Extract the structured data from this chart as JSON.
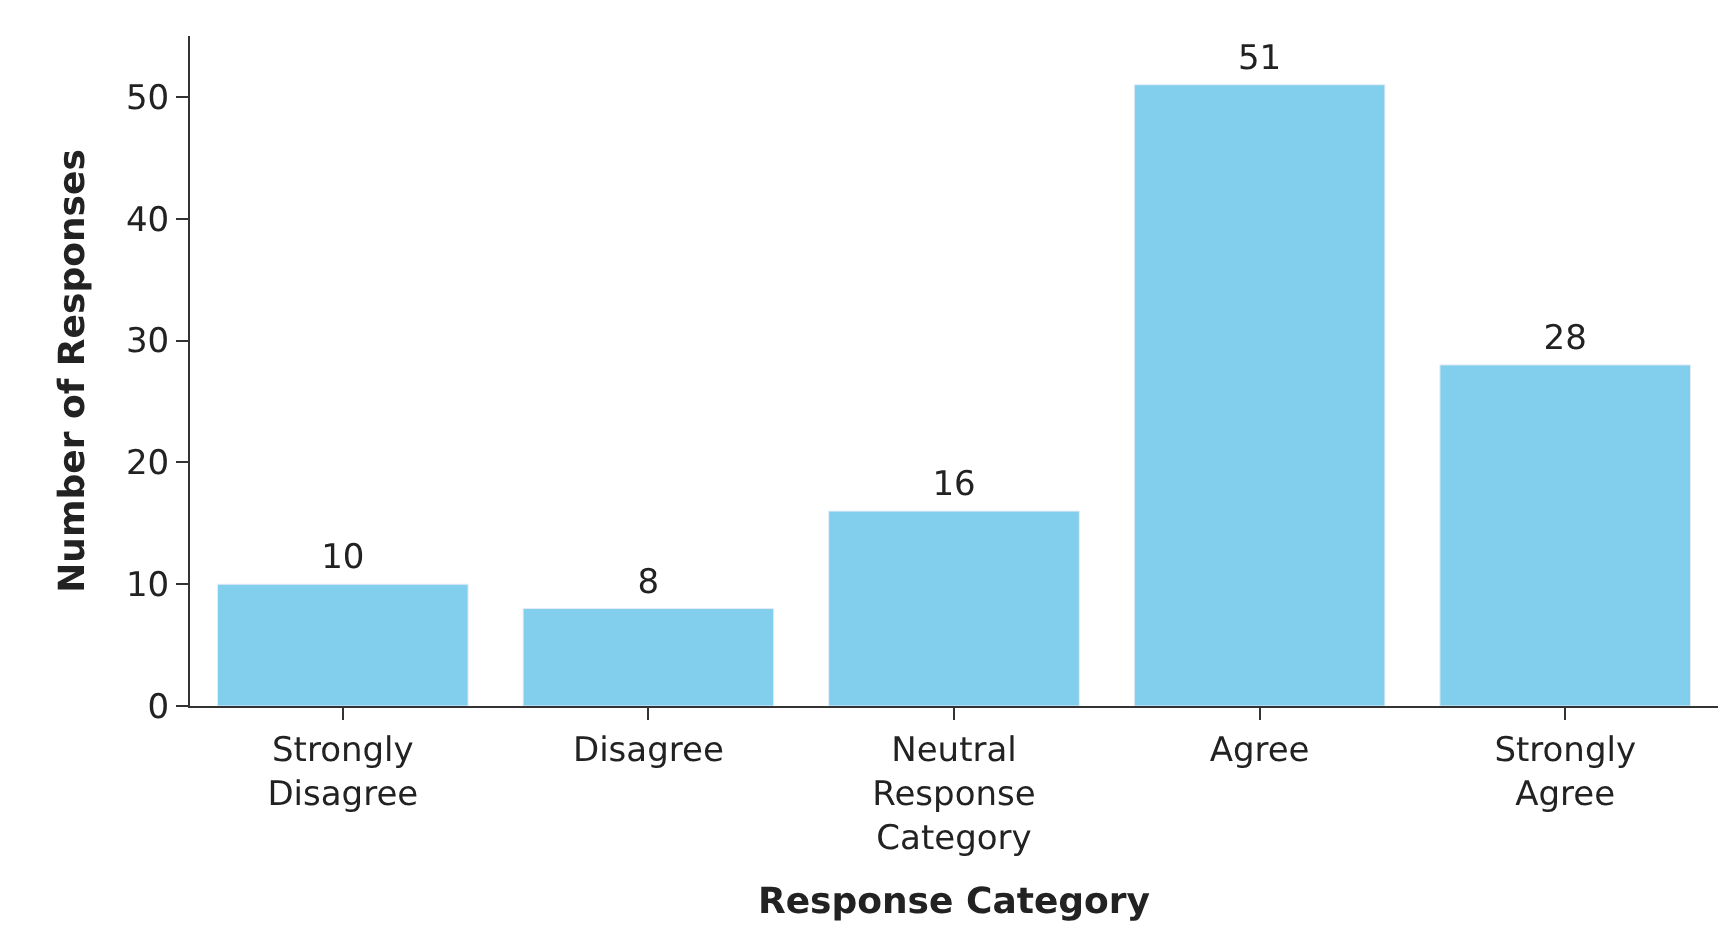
{
  "chart_data": {
    "type": "bar",
    "xlabel": "Response Category",
    "ylabel": "Number of Responses",
    "categories": [
      "Strongly Disagree",
      "Disagree",
      "Neutral Response Category",
      "Agree",
      "Strongly Agree"
    ],
    "values": [
      10,
      8,
      16,
      51,
      28
    ],
    "color": "#82ceed",
    "ylim": [
      0,
      55
    ],
    "yticks": [
      0,
      10,
      20,
      30,
      40,
      50
    ],
    "data_labels": true,
    "legend": false
  }
}
